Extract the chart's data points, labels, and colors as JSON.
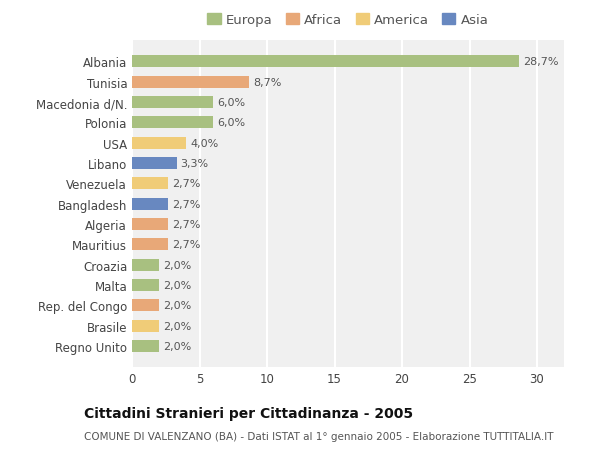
{
  "categories": [
    "Albania",
    "Tunisia",
    "Macedonia d/N.",
    "Polonia",
    "USA",
    "Libano",
    "Venezuela",
    "Bangladesh",
    "Algeria",
    "Mauritius",
    "Croazia",
    "Malta",
    "Rep. del Congo",
    "Brasile",
    "Regno Unito"
  ],
  "values": [
    28.7,
    8.7,
    6.0,
    6.0,
    4.0,
    3.3,
    2.7,
    2.7,
    2.7,
    2.7,
    2.0,
    2.0,
    2.0,
    2.0,
    2.0
  ],
  "labels": [
    "28,7%",
    "8,7%",
    "6,0%",
    "6,0%",
    "4,0%",
    "3,3%",
    "2,7%",
    "2,7%",
    "2,7%",
    "2,7%",
    "2,0%",
    "2,0%",
    "2,0%",
    "2,0%",
    "2,0%"
  ],
  "continents": [
    "Europa",
    "Africa",
    "Europa",
    "Europa",
    "America",
    "Asia",
    "America",
    "Asia",
    "Africa",
    "Africa",
    "Europa",
    "Europa",
    "Africa",
    "America",
    "Europa"
  ],
  "continent_colors": {
    "Europa": "#a8c080",
    "Africa": "#e8a878",
    "America": "#f0cc78",
    "Asia": "#6888c0"
  },
  "legend_order": [
    "Europa",
    "Africa",
    "America",
    "Asia"
  ],
  "title": "Cittadini Stranieri per Cittadinanza - 2005",
  "subtitle": "COMUNE DI VALENZANO (BA) - Dati ISTAT al 1° gennaio 2005 - Elaborazione TUTTITALIA.IT",
  "xlim": [
    0,
    32
  ],
  "xticks": [
    0,
    5,
    10,
    15,
    20,
    25,
    30
  ],
  "background_color": "#ffffff",
  "plot_bg_color": "#f0f0f0",
  "grid_color": "#ffffff",
  "bar_height": 0.6,
  "title_fontsize": 10,
  "subtitle_fontsize": 7.5,
  "tick_fontsize": 8.5,
  "label_fontsize": 8,
  "legend_fontsize": 9.5
}
